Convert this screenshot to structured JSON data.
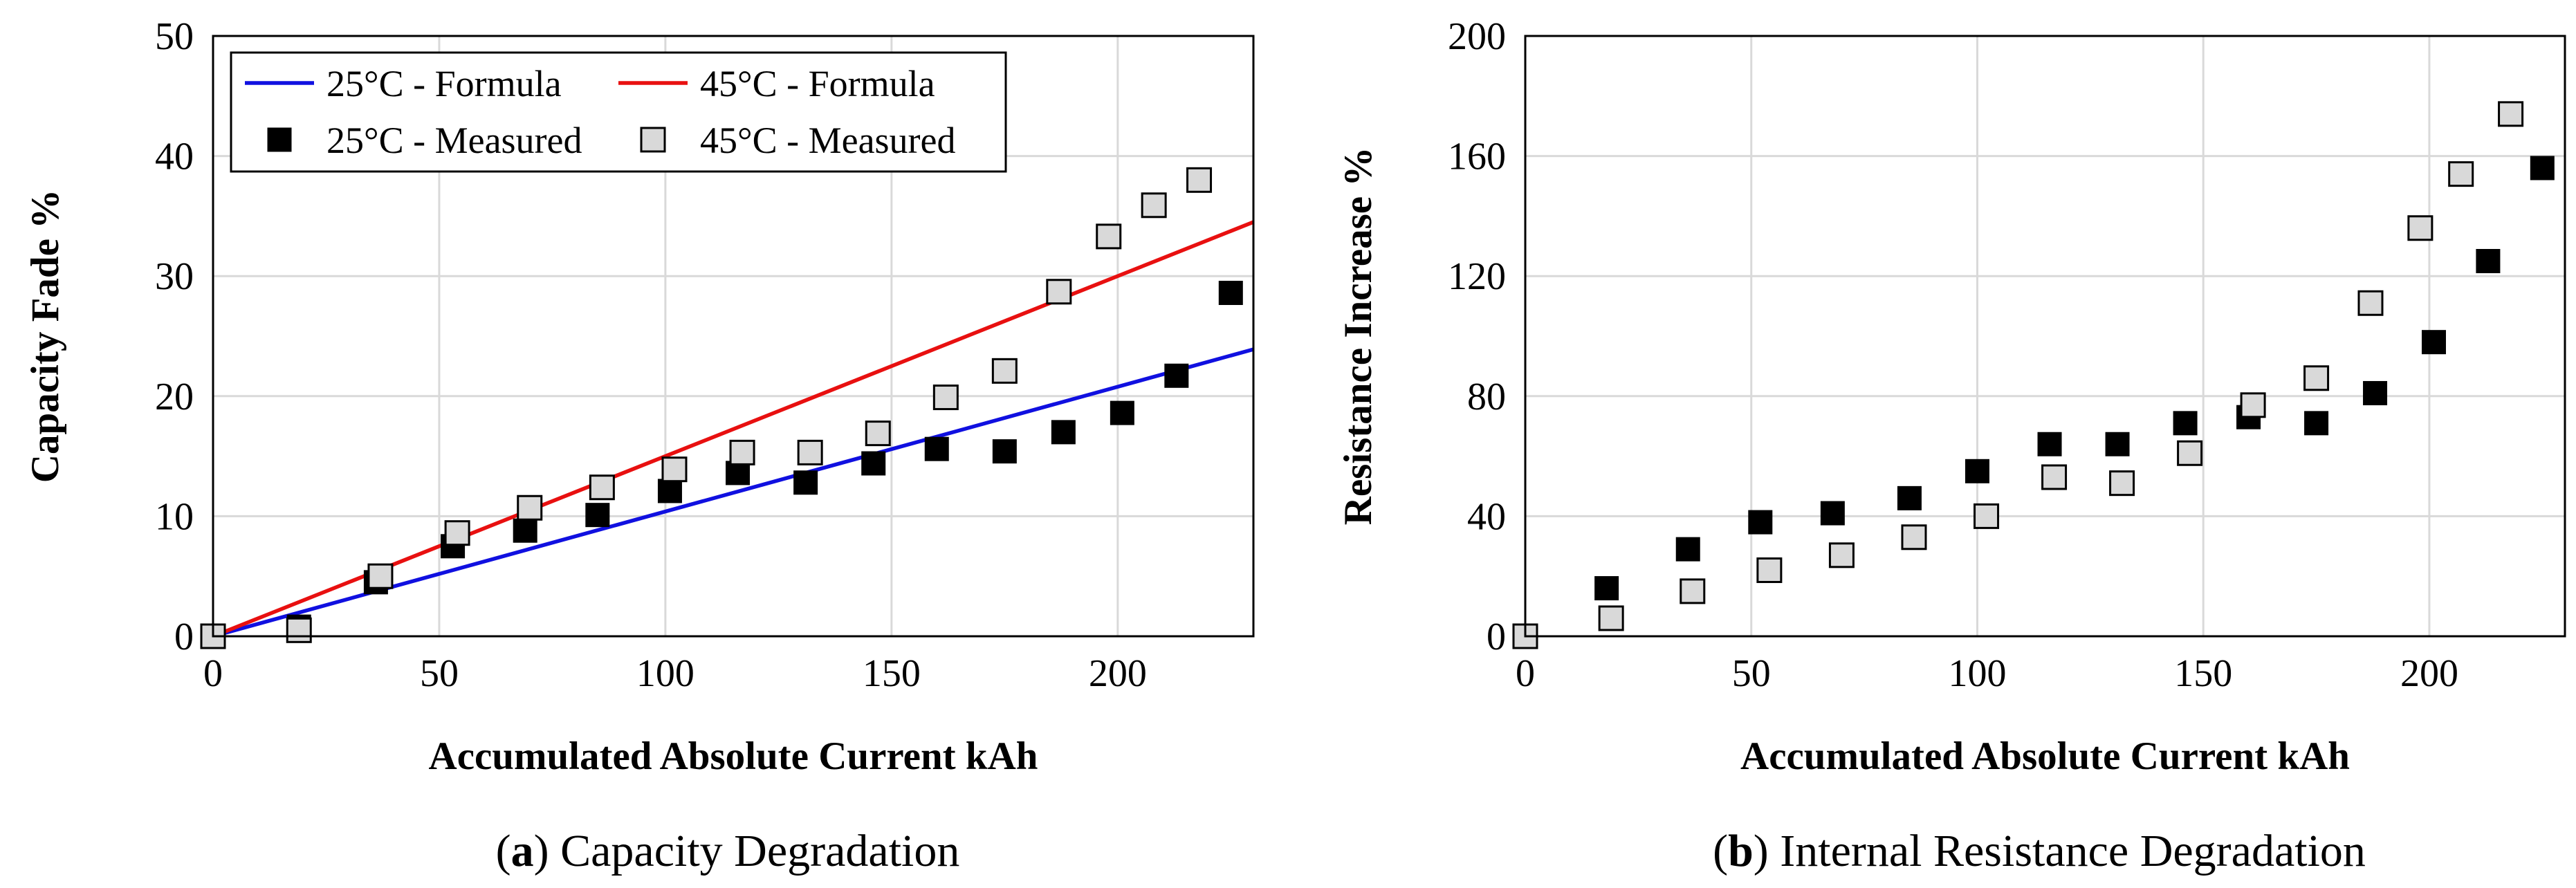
{
  "colors": {
    "formula_25": "#1010e0",
    "formula_45": "#e81010",
    "measured_25": "#000000",
    "measured_45_fill": "#d9d9d9",
    "measured_45_stroke": "#000000",
    "grid": "#d9d9d9"
  },
  "chart_data": [
    {
      "type": "scatter",
      "caption_letter": "a",
      "caption_text": " Capacity Degradation",
      "xlabel": "Accumulated Absolute Current  kAh",
      "ylabel": "Capacity Fade  %",
      "xlim": [
        0,
        230
      ],
      "ylim": [
        0,
        50
      ],
      "xticks": [
        0,
        50,
        100,
        150,
        200
      ],
      "yticks": [
        0,
        10,
        20,
        30,
        40,
        50
      ],
      "grid": true,
      "legend_position": "top-left",
      "series": [
        {
          "name": "25°C - Formula",
          "kind": "line",
          "color": "#1010e0",
          "x": [
            0,
            230
          ],
          "y": [
            0,
            23.9
          ]
        },
        {
          "name": "45°C - Formula",
          "kind": "line",
          "color": "#e81010",
          "x": [
            0,
            230
          ],
          "y": [
            0,
            34.5
          ]
        },
        {
          "name": "25°C - Measured",
          "kind": "marker",
          "marker": "filled-square",
          "x": [
            0,
            19,
            36,
            53,
            69,
            85,
            101,
            116,
            131,
            146,
            160,
            175,
            188,
            201,
            213,
            225
          ],
          "y": [
            0,
            0.8,
            4.5,
            7.5,
            8.8,
            10.1,
            12.1,
            13.6,
            12.8,
            14.4,
            15.6,
            15.4,
            17.0,
            18.6,
            21.7,
            28.6
          ]
        },
        {
          "name": "45°C - Measured",
          "kind": "marker",
          "marker": "open-square",
          "x": [
            0,
            19,
            37,
            54,
            70,
            86,
            102,
            117,
            132,
            147,
            162,
            175,
            187,
            198,
            208,
            218
          ],
          "y": [
            0,
            0.5,
            5.0,
            8.6,
            10.7,
            12.4,
            13.9,
            15.3,
            15.3,
            16.9,
            19.9,
            22.1,
            28.7,
            33.3,
            35.9,
            38.0
          ]
        }
      ]
    },
    {
      "type": "scatter",
      "caption_letter": "b",
      "caption_text": " Internal Resistance Degradation",
      "xlabel": "Accumulated Absolute Current  kAh",
      "ylabel": "Resistance Increase  %",
      "xlim": [
        0,
        230
      ],
      "ylim": [
        0,
        200
      ],
      "xticks": [
        0,
        50,
        100,
        150,
        200
      ],
      "yticks": [
        0,
        40,
        80,
        120,
        160,
        200
      ],
      "grid": true,
      "series": [
        {
          "kind": "marker",
          "marker": "filled-square",
          "x": [
            0,
            18,
            36,
            52,
            68,
            85,
            100,
            116,
            131,
            146,
            160,
            175,
            188,
            201,
            213,
            225
          ],
          "y": [
            0,
            16,
            29,
            38,
            41,
            46,
            55,
            64,
            64,
            71,
            73,
            71,
            81,
            98,
            125,
            156
          ]
        },
        {
          "kind": "marker",
          "marker": "open-square",
          "x": [
            0,
            19,
            37,
            54,
            70,
            86,
            102,
            117,
            132,
            147,
            161,
            175,
            187,
            198,
            207,
            218
          ],
          "y": [
            0,
            6,
            15,
            22,
            27,
            33,
            40,
            53,
            51,
            61,
            77,
            86,
            111,
            136,
            154,
            174
          ]
        }
      ]
    }
  ]
}
